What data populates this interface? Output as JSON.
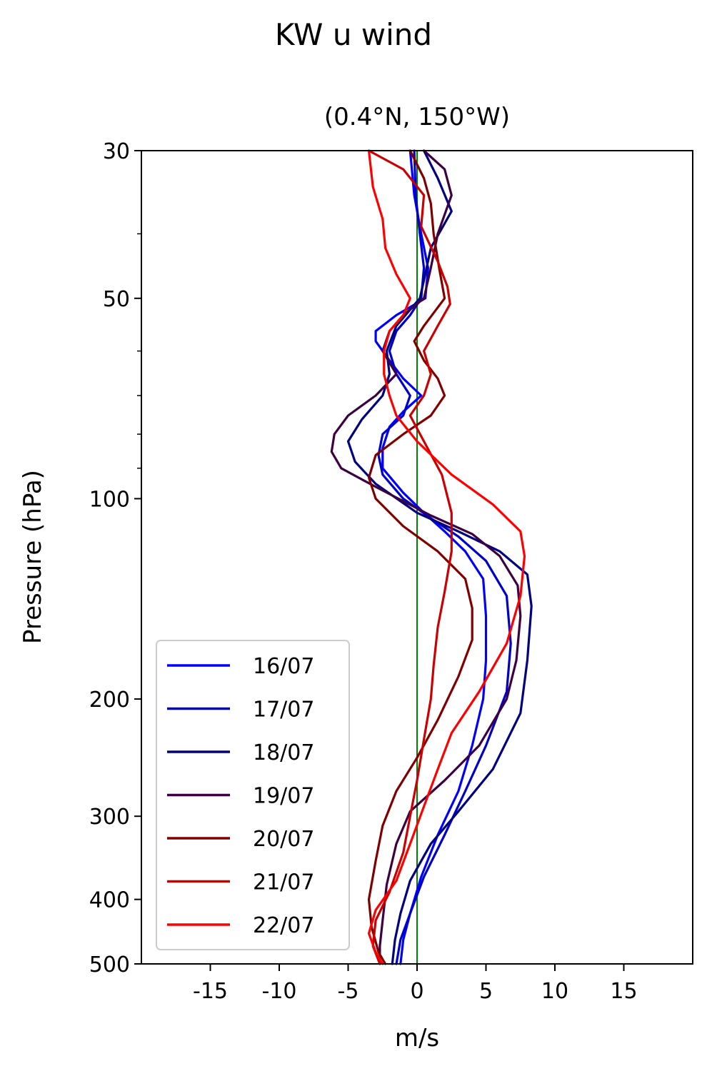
{
  "chart_data": {
    "type": "line",
    "title": "KW u wind",
    "subtitle": "(0.4°N, 150°W)",
    "xlabel": "m/s",
    "ylabel": "Pressure (hPa)",
    "xlim": [
      -20,
      20
    ],
    "ylim": [
      500,
      30
    ],
    "y_scale": "log",
    "x_ticks": [
      -15,
      -10,
      -5,
      0,
      5,
      10,
      15
    ],
    "x_tick_labels": [
      "-15",
      "-10",
      "-5",
      "0",
      "5",
      "10",
      "15"
    ],
    "y_ticks": [
      30,
      50,
      100,
      200,
      300,
      400,
      500
    ],
    "y_tick_labels": [
      "30",
      "50",
      "100",
      "200",
      "300",
      "400",
      "500"
    ],
    "zero_line_color": "#008000",
    "legend_position": "lower-left",
    "grid": false,
    "series": [
      {
        "name": "16/07",
        "color": "#0000ff",
        "points": [
          [
            -0.5,
            30
          ],
          [
            -0.2,
            35
          ],
          [
            0.3,
            40
          ],
          [
            0.8,
            45
          ],
          [
            0.6,
            50
          ],
          [
            -1.5,
            53
          ],
          [
            -3,
            56
          ],
          [
            -3,
            58
          ],
          [
            -2,
            62
          ],
          [
            -1,
            66
          ],
          [
            0.3,
            70
          ],
          [
            -1,
            74
          ],
          [
            -2,
            78
          ],
          [
            -2.5,
            84
          ],
          [
            -2.5,
            90
          ],
          [
            -1,
            98
          ],
          [
            0.5,
            105
          ],
          [
            2,
            112
          ],
          [
            3.5,
            120
          ],
          [
            4.8,
            132
          ],
          [
            5,
            150
          ],
          [
            5,
            175
          ],
          [
            4.8,
            200
          ],
          [
            4,
            235
          ],
          [
            3,
            275
          ],
          [
            1.5,
            320
          ],
          [
            0.3,
            370
          ],
          [
            -0.5,
            420
          ],
          [
            -1,
            460
          ],
          [
            -1.2,
            500
          ]
        ]
      },
      {
        "name": "17/07",
        "color": "#0000cc",
        "points": [
          [
            -0.2,
            30
          ],
          [
            -0.1,
            35
          ],
          [
            0.2,
            40
          ],
          [
            0.5,
            45
          ],
          [
            0.3,
            50
          ],
          [
            -0.5,
            53
          ],
          [
            -1.5,
            56
          ],
          [
            -2,
            60
          ],
          [
            -1.5,
            65
          ],
          [
            -0.5,
            70
          ],
          [
            -1,
            75
          ],
          [
            -2.5,
            80
          ],
          [
            -2.8,
            86
          ],
          [
            -2.5,
            92
          ],
          [
            -1,
            100
          ],
          [
            1,
            107
          ],
          [
            3,
            114
          ],
          [
            5,
            124
          ],
          [
            6.5,
            140
          ],
          [
            6.8,
            165
          ],
          [
            6.5,
            195
          ],
          [
            5,
            235
          ],
          [
            3.5,
            275
          ],
          [
            2,
            320
          ],
          [
            0.5,
            370
          ],
          [
            -0.5,
            420
          ],
          [
            -1.2,
            460
          ],
          [
            -1.5,
            500
          ]
        ]
      },
      {
        "name": "18/07",
        "color": "#000080",
        "points": [
          [
            0.5,
            30
          ],
          [
            1.5,
            33
          ],
          [
            2.5,
            37
          ],
          [
            1,
            42
          ],
          [
            0.5,
            47
          ],
          [
            0.2,
            50
          ],
          [
            -1.5,
            55
          ],
          [
            -2.2,
            60
          ],
          [
            -2,
            65
          ],
          [
            -2.5,
            70
          ],
          [
            -4,
            76
          ],
          [
            -5,
            82
          ],
          [
            -4.5,
            88
          ],
          [
            -3,
            95
          ],
          [
            0,
            105
          ],
          [
            3,
            112
          ],
          [
            6,
            120
          ],
          [
            8,
            130
          ],
          [
            8.3,
            145
          ],
          [
            8,
            175
          ],
          [
            7.5,
            210
          ],
          [
            5.5,
            255
          ],
          [
            3,
            295
          ],
          [
            1,
            330
          ],
          [
            -0.5,
            375
          ],
          [
            -1.2,
            420
          ],
          [
            -1.6,
            460
          ],
          [
            -1.8,
            500
          ]
        ]
      },
      {
        "name": "19/07",
        "color": "#3d0040",
        "points": [
          [
            0.5,
            30
          ],
          [
            2,
            32
          ],
          [
            2.5,
            35
          ],
          [
            1.5,
            40
          ],
          [
            1,
            45
          ],
          [
            0.5,
            50
          ],
          [
            -1,
            53
          ],
          [
            -2,
            56
          ],
          [
            -2.5,
            60
          ],
          [
            -1.5,
            65
          ],
          [
            -3,
            70
          ],
          [
            -5,
            75
          ],
          [
            -6,
            80
          ],
          [
            -6.2,
            85
          ],
          [
            -5.5,
            90
          ],
          [
            -3,
            96
          ],
          [
            1,
            106
          ],
          [
            4,
            113
          ],
          [
            6,
            122
          ],
          [
            7.3,
            135
          ],
          [
            7.5,
            150
          ],
          [
            7.2,
            175
          ],
          [
            6.5,
            200
          ],
          [
            4.5,
            235
          ],
          [
            2,
            265
          ],
          [
            -0.5,
            295
          ],
          [
            -1.5,
            330
          ],
          [
            -2.2,
            380
          ],
          [
            -2.5,
            430
          ],
          [
            -2.7,
            470
          ],
          [
            -2.7,
            500
          ]
        ]
      },
      {
        "name": "20/07",
        "color": "#800000",
        "points": [
          [
            -0.5,
            30
          ],
          [
            0.5,
            33
          ],
          [
            1,
            36
          ],
          [
            1.2,
            40
          ],
          [
            1.6,
            45
          ],
          [
            2,
            50
          ],
          [
            0.5,
            55
          ],
          [
            -0.2,
            58
          ],
          [
            0.5,
            62
          ],
          [
            1.5,
            66
          ],
          [
            2,
            70
          ],
          [
            1,
            75
          ],
          [
            -1,
            80
          ],
          [
            -3,
            86
          ],
          [
            -3.5,
            93
          ],
          [
            -3,
            100
          ],
          [
            -1,
            110
          ],
          [
            1.5,
            120
          ],
          [
            3.5,
            132
          ],
          [
            4,
            146
          ],
          [
            4,
            163
          ],
          [
            3,
            185
          ],
          [
            1.5,
            215
          ],
          [
            0,
            245
          ],
          [
            -1.5,
            275
          ],
          [
            -2.5,
            310
          ],
          [
            -3,
            350
          ],
          [
            -3.5,
            400
          ],
          [
            -3.3,
            440
          ],
          [
            -2.8,
            480
          ],
          [
            -2.3,
            500
          ]
        ]
      },
      {
        "name": "21/07",
        "color": "#cc0000",
        "points": [
          [
            -3.5,
            30
          ],
          [
            -1,
            32
          ],
          [
            0.5,
            35
          ],
          [
            0.3,
            39
          ],
          [
            1.5,
            44
          ],
          [
            2.2,
            48
          ],
          [
            2.4,
            51
          ],
          [
            1.5,
            55
          ],
          [
            0.5,
            60
          ],
          [
            1,
            65
          ],
          [
            0.5,
            70
          ],
          [
            -0.5,
            75
          ],
          [
            0.5,
            82
          ],
          [
            1.8,
            92
          ],
          [
            2.5,
            105
          ],
          [
            2.5,
            120
          ],
          [
            2,
            138
          ],
          [
            1.5,
            156
          ],
          [
            1.2,
            178
          ],
          [
            1,
            200
          ],
          [
            0.5,
            230
          ],
          [
            0,
            265
          ],
          [
            -0.5,
            300
          ],
          [
            -1,
            340
          ],
          [
            -2,
            390
          ],
          [
            -3,
            430
          ],
          [
            -3.2,
            470
          ],
          [
            -2.7,
            500
          ]
        ]
      },
      {
        "name": "22/07",
        "color": "#ff0000",
        "points": [
          [
            -3.5,
            30
          ],
          [
            -3.2,
            34
          ],
          [
            -2.5,
            38
          ],
          [
            -2.3,
            42
          ],
          [
            -1.5,
            46
          ],
          [
            -0.5,
            50
          ],
          [
            -1,
            53
          ],
          [
            -2,
            56
          ],
          [
            -2.4,
            60
          ],
          [
            -2.4,
            65
          ],
          [
            -2,
            70
          ],
          [
            -1.5,
            75
          ],
          [
            0,
            82
          ],
          [
            2.5,
            92
          ],
          [
            5.5,
            102
          ],
          [
            7.5,
            112
          ],
          [
            7.8,
            122
          ],
          [
            7.5,
            140
          ],
          [
            6.5,
            165
          ],
          [
            4.5,
            195
          ],
          [
            2.5,
            225
          ],
          [
            1.5,
            255
          ],
          [
            0.5,
            290
          ],
          [
            -0.5,
            330
          ],
          [
            -1.5,
            375
          ],
          [
            -3,
            415
          ],
          [
            -3.5,
            450
          ],
          [
            -3,
            480
          ],
          [
            -2.5,
            500
          ]
        ]
      }
    ]
  }
}
